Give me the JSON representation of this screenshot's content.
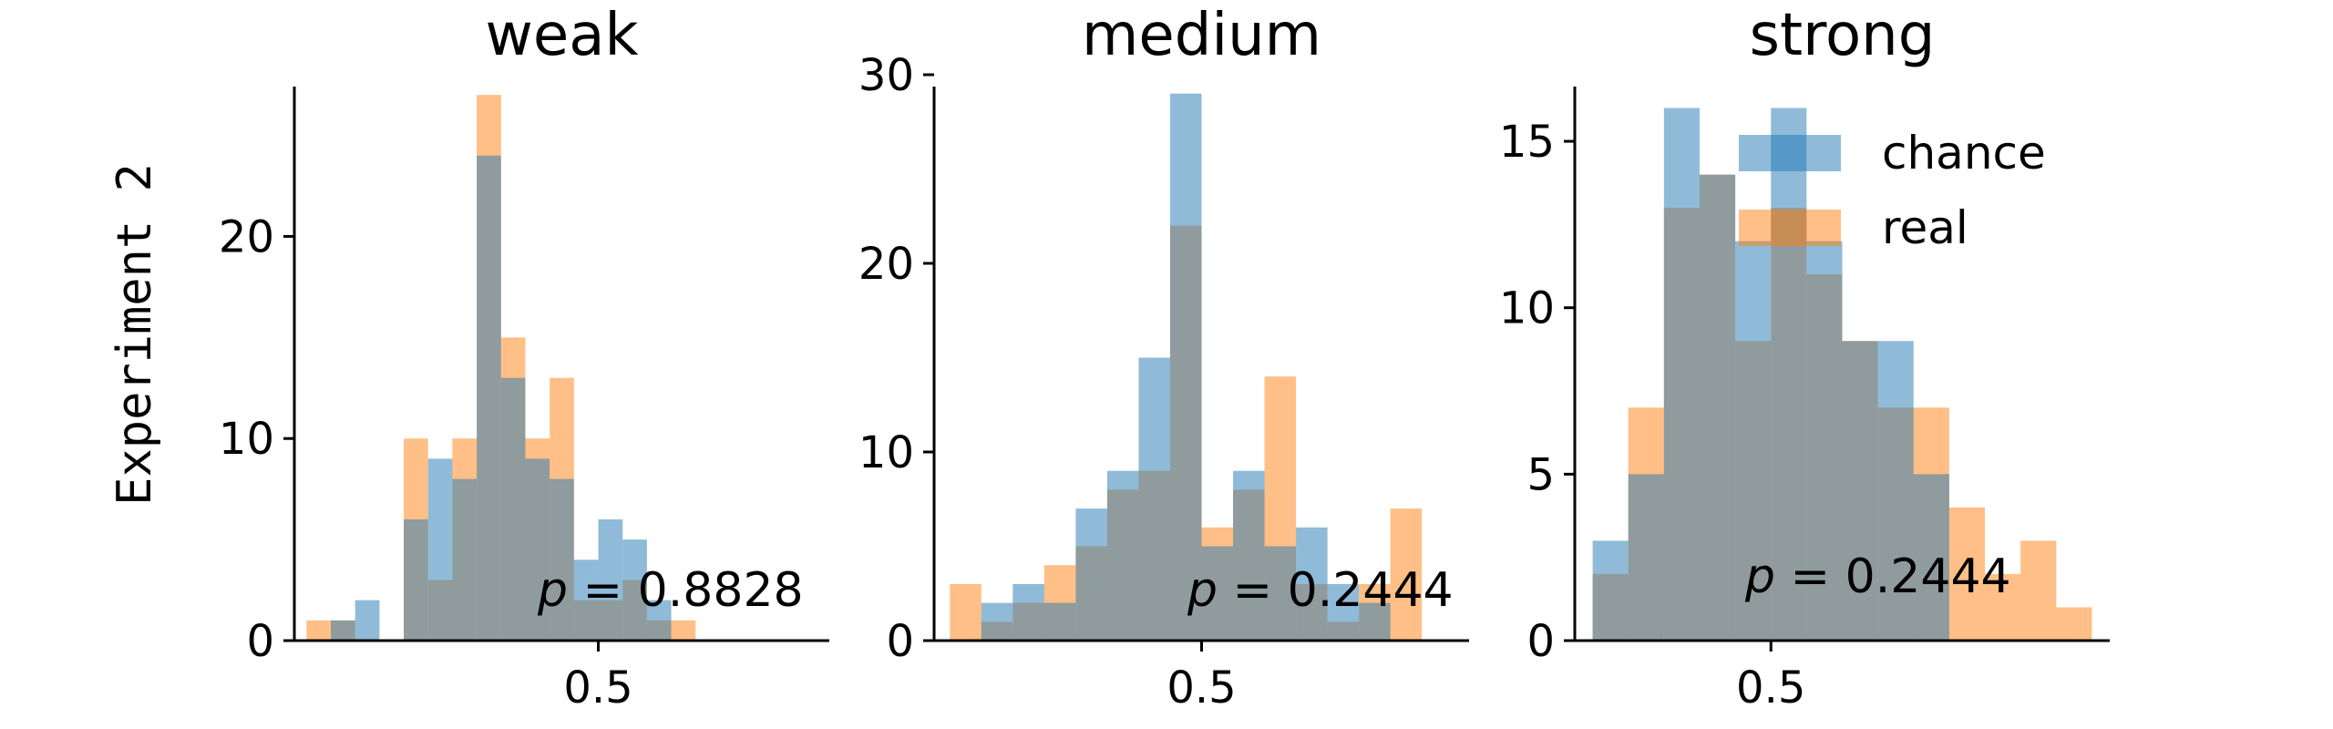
{
  "row_label": "Experiment 2",
  "colors": {
    "chance": "#1f77b4",
    "real": "#ff7f0e"
  },
  "bar_opacity": 0.5,
  "legend": {
    "placement": "top-right",
    "location_panel": 2,
    "entries": [
      "chance",
      "real"
    ]
  },
  "chart_data": [
    {
      "type": "bar",
      "title": "weak",
      "xlabel": "",
      "ylabel": "Experiment 2",
      "bin_width": 0.025,
      "xlim": [
        0.1875,
        0.7375
      ],
      "ylim": [
        0,
        28
      ],
      "xticks": [
        {
          "value": 0.5,
          "label": "0.5"
        }
      ],
      "yticks": [
        {
          "value": 0,
          "label": "0"
        },
        {
          "value": 10,
          "label": "10"
        },
        {
          "value": 20,
          "label": "20"
        }
      ],
      "series": [
        {
          "name": "chance",
          "bins": [
            [
              0.2375,
              1
            ],
            [
              0.2625,
              2
            ],
            [
              0.3125,
              6
            ],
            [
              0.3375,
              9
            ],
            [
              0.3625,
              8
            ],
            [
              0.3875,
              24
            ],
            [
              0.4125,
              13
            ],
            [
              0.4375,
              9
            ],
            [
              0.4625,
              8
            ],
            [
              0.4875,
              4
            ],
            [
              0.5125,
              6
            ],
            [
              0.5375,
              5
            ],
            [
              0.5625,
              2
            ]
          ]
        },
        {
          "name": "real",
          "bins": [
            [
              0.2125,
              1
            ],
            [
              0.2375,
              1
            ],
            [
              0.3125,
              10
            ],
            [
              0.3375,
              3
            ],
            [
              0.3625,
              10
            ],
            [
              0.3875,
              27
            ],
            [
              0.4125,
              15
            ],
            [
              0.4375,
              10
            ],
            [
              0.4625,
              13
            ],
            [
              0.4875,
              2
            ],
            [
              0.5125,
              2
            ],
            [
              0.5375,
              3
            ],
            [
              0.5625,
              1
            ],
            [
              0.5875,
              1
            ]
          ]
        }
      ],
      "annotation": {
        "p_symbol": "p",
        "eq": "=",
        "value": "0.8828"
      }
    },
    {
      "type": "bar",
      "title": "medium",
      "xlabel": "",
      "ylabel": "",
      "bin_width": 0.025,
      "xlim": [
        0.2875,
        0.7125
      ],
      "ylim": [
        0,
        30
      ],
      "xticks": [
        {
          "value": 0.5,
          "label": "0.5"
        }
      ],
      "yticks": [
        {
          "value": 0,
          "label": "0"
        },
        {
          "value": 10,
          "label": "10"
        },
        {
          "value": 20,
          "label": "20"
        },
        {
          "value": 30,
          "label": "30"
        }
      ],
      "series": [
        {
          "name": "chance",
          "bins": [
            [
              0.3375,
              2
            ],
            [
              0.3625,
              3
            ],
            [
              0.3875,
              2
            ],
            [
              0.4125,
              7
            ],
            [
              0.4375,
              9
            ],
            [
              0.4625,
              15
            ],
            [
              0.4875,
              29
            ],
            [
              0.5125,
              5
            ],
            [
              0.5375,
              9
            ],
            [
              0.5625,
              5
            ],
            [
              0.5875,
              6
            ],
            [
              0.6125,
              3
            ],
            [
              0.6375,
              2
            ]
          ]
        },
        {
          "name": "real",
          "bins": [
            [
              0.3125,
              3
            ],
            [
              0.3375,
              1
            ],
            [
              0.3625,
              2
            ],
            [
              0.3875,
              4
            ],
            [
              0.4125,
              5
            ],
            [
              0.4375,
              8
            ],
            [
              0.4625,
              9
            ],
            [
              0.4875,
              22
            ],
            [
              0.5125,
              6
            ],
            [
              0.5375,
              8
            ],
            [
              0.5625,
              14
            ],
            [
              0.5875,
              3
            ],
            [
              0.6125,
              1
            ],
            [
              0.6375,
              3
            ],
            [
              0.6625,
              7
            ]
          ]
        }
      ],
      "annotation": {
        "p_symbol": "p",
        "eq": "=",
        "value": "0.2444"
      }
    },
    {
      "type": "bar",
      "title": "strong",
      "xlabel": "",
      "ylabel": "",
      "bin_width": 0.025,
      "xlim": [
        0.3625,
        0.7375
      ],
      "ylim": [
        0,
        17
      ],
      "xticks": [
        {
          "value": 0.5,
          "label": "0.5"
        }
      ],
      "yticks": [
        {
          "value": 0,
          "label": "0"
        },
        {
          "value": 5,
          "label": "5"
        },
        {
          "value": 10,
          "label": "10"
        },
        {
          "value": 15,
          "label": "15"
        }
      ],
      "series": [
        {
          "name": "chance",
          "bins": [
            [
              0.3875,
              3
            ],
            [
              0.4125,
              5
            ],
            [
              0.4375,
              16
            ],
            [
              0.4625,
              14
            ],
            [
              0.4875,
              12
            ],
            [
              0.5125,
              16
            ],
            [
              0.5375,
              12
            ],
            [
              0.5625,
              9
            ],
            [
              0.5875,
              9
            ],
            [
              0.6125,
              5
            ]
          ]
        },
        {
          "name": "real",
          "bins": [
            [
              0.3875,
              2
            ],
            [
              0.4125,
              7
            ],
            [
              0.4375,
              13
            ],
            [
              0.4625,
              14
            ],
            [
              0.4875,
              9
            ],
            [
              0.5125,
              13
            ],
            [
              0.5375,
              11
            ],
            [
              0.5625,
              9
            ],
            [
              0.5875,
              7
            ],
            [
              0.6125,
              7
            ],
            [
              0.6375,
              4
            ],
            [
              0.6625,
              2
            ],
            [
              0.6875,
              3
            ],
            [
              0.7125,
              1
            ]
          ]
        }
      ],
      "annotation": {
        "p_symbol": "p",
        "eq": "=",
        "value": "0.2444"
      }
    }
  ]
}
